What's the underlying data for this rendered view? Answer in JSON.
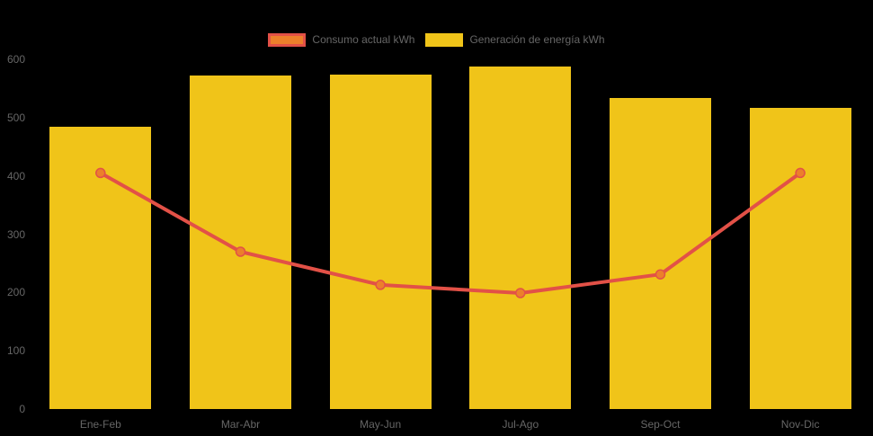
{
  "background_color": "#000000",
  "text_color": "#666666",
  "legend": {
    "consumo_label": "Consumo actual kWh",
    "generacion_label": "Generación de energía kWh"
  },
  "chart_data": {
    "type": "bar",
    "subtype": "bar-with-line-overlay",
    "title": "",
    "xlabel": "",
    "ylabel": "",
    "categories": [
      "Ene-Feb",
      "Mar-Abr",
      "May-Jun",
      "Jul-Ago",
      "Sep-Oct",
      "Nov-Dic"
    ],
    "series": [
      {
        "name": "Consumo actual kWh",
        "type": "line",
        "values": [
          405,
          270,
          213,
          199,
          231,
          405
        ],
        "color": "#E25147",
        "point_fill": "#EC7F2B",
        "point_radius": 5,
        "line_width": 4
      },
      {
        "name": "Generación de energía kWh",
        "type": "bar",
        "values": [
          485,
          573,
          574,
          588,
          533,
          517
        ],
        "color": "#F0C419"
      }
    ],
    "ylim": [
      0,
      600
    ],
    "yticks": [
      0,
      100,
      200,
      300,
      400,
      500,
      600
    ],
    "grid": false,
    "legend_position": "top"
  }
}
